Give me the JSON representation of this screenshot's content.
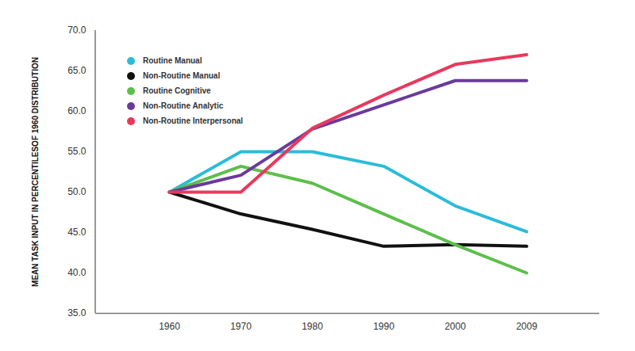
{
  "chart_data": {
    "type": "line",
    "y_label": "MEAN TASK INPUT IN PERCENTILESOF 1960 DISTRIBUTION",
    "categories": [
      "1960",
      "1970",
      "1980",
      "1990",
      "2000",
      "2009"
    ],
    "series": [
      {
        "name": "Routine Manual",
        "color": "#2bbcd8",
        "values": [
          50.0,
          55.0,
          55.0,
          53.2,
          48.3,
          45.1
        ]
      },
      {
        "name": "Non-Routine Manual",
        "color": "#111111",
        "values": [
          50.0,
          47.3,
          45.4,
          43.3,
          43.5,
          43.3
        ]
      },
      {
        "name": "Routine Cognitive",
        "color": "#5cbf4b",
        "values": [
          50.0,
          53.2,
          51.1,
          47.3,
          43.5,
          40.0
        ]
      },
      {
        "name": "Non-Routine Analytic",
        "color": "#6a3a9c",
        "values": [
          50.0,
          52.1,
          57.8,
          60.8,
          63.8,
          63.8
        ]
      },
      {
        "name": "Non-Routine Interpersonal",
        "color": "#e8395d",
        "values": [
          50.0,
          50.0,
          57.9,
          62.0,
          65.8,
          67.0
        ]
      }
    ],
    "ylim": [
      35,
      70
    ],
    "yticks": [
      {
        "value": 35,
        "label": "35.0"
      },
      {
        "value": 40,
        "label": "40.0"
      },
      {
        "value": 45,
        "label": "45.0"
      },
      {
        "value": 50,
        "label": "50.0"
      },
      {
        "value": 55,
        "label": "55.0"
      },
      {
        "value": 60,
        "label": "60.0"
      },
      {
        "value": 65,
        "label": "65.0"
      },
      {
        "value": 70,
        "label": "70.0"
      }
    ],
    "grid": false,
    "legend": "top-left"
  }
}
